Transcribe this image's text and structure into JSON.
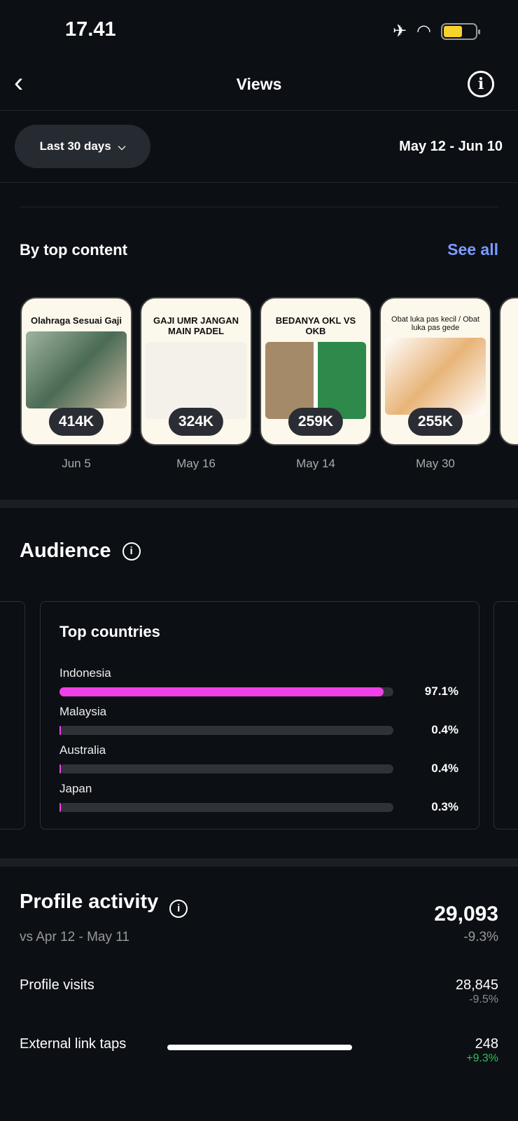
{
  "status_bar": {
    "time": "17.41",
    "icons": [
      "airplane-icon",
      "wifi-icon",
      "battery-icon"
    ],
    "battery_level": 0.6
  },
  "header": {
    "title": "Views",
    "back_icon": "chevron-left-icon",
    "info_icon": "info-icon"
  },
  "filter": {
    "range_label": "Last 30 days",
    "date_range": "May 12 - Jun 10"
  },
  "top_content": {
    "title": "By top content",
    "see_all": "See all",
    "items": [
      {
        "title": "Olahraga Sesuai Gaji",
        "views": "414K",
        "date": "Jun 5"
      },
      {
        "title": "GAJI UMR JANGAN MAIN PADEL",
        "views": "324K",
        "date": "May 16"
      },
      {
        "title": "BEDANYA OKL VS OKB",
        "views": "259K",
        "date": "May 14"
      },
      {
        "title": "Obat luka pas kecil / Obat luka pas gede",
        "views": "255K",
        "date": "May 30"
      }
    ]
  },
  "audience": {
    "title": "Audience",
    "card_title": "Top countries",
    "countries": [
      {
        "name": "Indonesia",
        "pct": "97.1%",
        "value": 97.1
      },
      {
        "name": "Malaysia",
        "pct": "0.4%",
        "value": 0.4
      },
      {
        "name": "Australia",
        "pct": "0.4%",
        "value": 0.4
      },
      {
        "name": "Japan",
        "pct": "0.3%",
        "value": 0.3
      }
    ],
    "accent": "#f040e8"
  },
  "profile_activity": {
    "title": "Profile activity",
    "compare": "vs Apr 12 - May 11",
    "total": "29,093",
    "total_change": "-9.3%",
    "rows": [
      {
        "label": "Profile visits",
        "value": "28,845",
        "change": "-9.5%",
        "color": "#8a8d93"
      },
      {
        "label": "External link taps",
        "value": "248",
        "change": "+9.3%",
        "color": "#2fbf5a"
      }
    ]
  }
}
